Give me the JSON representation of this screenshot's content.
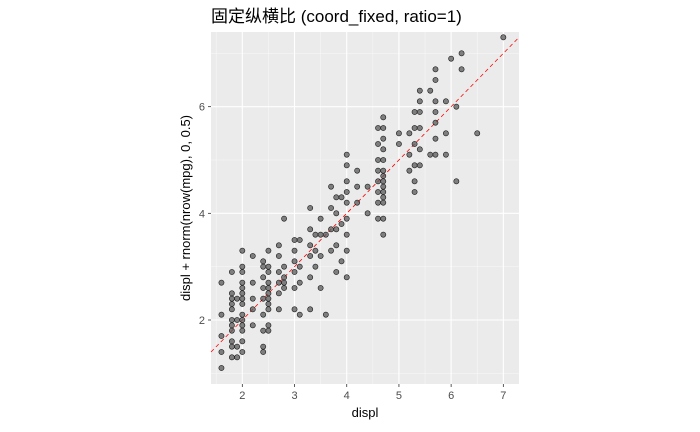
{
  "chart_data": {
    "type": "scatter",
    "title": "固定纵横比 (coord_fixed, ratio=1)",
    "xlabel": "displ",
    "ylabel": "displ + rnorm(nrow(mpg), 0, 0.5)",
    "xlim": [
      1.4,
      7.3
    ],
    "ylim": [
      0.8,
      7.4
    ],
    "xticks": [
      2,
      3,
      4,
      5,
      6,
      7
    ],
    "yticks": [
      2,
      4,
      6
    ],
    "grid": true,
    "panel_background": "#ebebeb",
    "point_color": "#595959",
    "reference_line": {
      "slope": 1,
      "intercept": 0,
      "style": "dashed",
      "color": "#ff0000"
    },
    "points": [
      [
        1.6,
        1.1
      ],
      [
        1.6,
        1.4
      ],
      [
        1.6,
        1.7
      ],
      [
        1.6,
        2.1
      ],
      [
        1.6,
        2.7
      ],
      [
        1.8,
        1.3
      ],
      [
        1.8,
        1.5
      ],
      [
        1.8,
        1.6
      ],
      [
        1.8,
        1.8
      ],
      [
        1.8,
        1.9
      ],
      [
        1.8,
        2.0
      ],
      [
        1.8,
        2.2
      ],
      [
        1.8,
        2.3
      ],
      [
        1.8,
        2.4
      ],
      [
        1.8,
        2.5
      ],
      [
        1.8,
        2.9
      ],
      [
        1.9,
        1.3
      ],
      [
        1.9,
        1.5
      ],
      [
        1.9,
        2.0
      ],
      [
        1.9,
        2.4
      ],
      [
        2.0,
        1.4
      ],
      [
        2.0,
        1.6
      ],
      [
        2.0,
        1.8
      ],
      [
        2.0,
        1.9
      ],
      [
        2.0,
        2.0
      ],
      [
        2.0,
        2.1
      ],
      [
        2.0,
        2.3
      ],
      [
        2.0,
        2.4
      ],
      [
        2.0,
        2.5
      ],
      [
        2.0,
        2.6
      ],
      [
        2.0,
        2.7
      ],
      [
        2.0,
        2.9
      ],
      [
        2.0,
        3.0
      ],
      [
        2.0,
        3.3
      ],
      [
        2.2,
        1.9
      ],
      [
        2.2,
        2.2
      ],
      [
        2.2,
        2.4
      ],
      [
        2.2,
        2.7
      ],
      [
        2.2,
        3.2
      ],
      [
        2.4,
        1.4
      ],
      [
        2.4,
        1.5
      ],
      [
        2.4,
        1.8
      ],
      [
        2.4,
        2.1
      ],
      [
        2.4,
        2.4
      ],
      [
        2.4,
        2.6
      ],
      [
        2.4,
        2.8
      ],
      [
        2.4,
        3.0
      ],
      [
        2.4,
        3.1
      ],
      [
        2.5,
        1.8
      ],
      [
        2.5,
        1.9
      ],
      [
        2.5,
        2.2
      ],
      [
        2.5,
        2.3
      ],
      [
        2.5,
        2.4
      ],
      [
        2.5,
        2.5
      ],
      [
        2.5,
        2.6
      ],
      [
        2.5,
        2.7
      ],
      [
        2.5,
        2.9
      ],
      [
        2.5,
        3.0
      ],
      [
        2.5,
        3.3
      ],
      [
        2.7,
        2.2
      ],
      [
        2.7,
        2.5
      ],
      [
        2.7,
        2.7
      ],
      [
        2.7,
        2.9
      ],
      [
        2.7,
        3.2
      ],
      [
        2.7,
        3.4
      ],
      [
        2.8,
        2.6
      ],
      [
        2.8,
        2.7
      ],
      [
        2.8,
        2.8
      ],
      [
        2.8,
        3.0
      ],
      [
        2.8,
        3.9
      ],
      [
        3.0,
        2.2
      ],
      [
        3.0,
        2.6
      ],
      [
        3.0,
        2.9
      ],
      [
        3.0,
        3.1
      ],
      [
        3.0,
        3.3
      ],
      [
        3.0,
        3.5
      ],
      [
        3.1,
        2.1
      ],
      [
        3.1,
        2.7
      ],
      [
        3.1,
        3.0
      ],
      [
        3.1,
        3.5
      ],
      [
        3.3,
        2.2
      ],
      [
        3.3,
        2.8
      ],
      [
        3.3,
        3.2
      ],
      [
        3.3,
        3.4
      ],
      [
        3.3,
        3.7
      ],
      [
        3.3,
        4.1
      ],
      [
        3.4,
        3.0
      ],
      [
        3.4,
        3.3
      ],
      [
        3.4,
        3.6
      ],
      [
        3.5,
        2.6
      ],
      [
        3.5,
        3.2
      ],
      [
        3.5,
        3.6
      ],
      [
        3.5,
        3.9
      ],
      [
        3.6,
        2.1
      ],
      [
        3.6,
        3.6
      ],
      [
        3.7,
        3.3
      ],
      [
        3.7,
        3.7
      ],
      [
        3.7,
        4.1
      ],
      [
        3.7,
        4.5
      ],
      [
        3.8,
        2.9
      ],
      [
        3.8,
        3.4
      ],
      [
        3.8,
        3.7
      ],
      [
        3.8,
        4.0
      ],
      [
        3.8,
        4.3
      ],
      [
        3.9,
        3.1
      ],
      [
        3.9,
        3.8
      ],
      [
        3.9,
        4.3
      ],
      [
        4.0,
        2.8
      ],
      [
        4.0,
        3.3
      ],
      [
        4.0,
        3.6
      ],
      [
        4.0,
        3.9
      ],
      [
        4.0,
        4.2
      ],
      [
        4.0,
        4.4
      ],
      [
        4.0,
        4.6
      ],
      [
        4.0,
        4.9
      ],
      [
        4.0,
        5.1
      ],
      [
        4.2,
        4.2
      ],
      [
        4.2,
        4.5
      ],
      [
        4.2,
        4.8
      ],
      [
        4.4,
        4.0
      ],
      [
        4.4,
        4.5
      ],
      [
        4.6,
        3.9
      ],
      [
        4.6,
        4.2
      ],
      [
        4.6,
        4.4
      ],
      [
        4.6,
        4.6
      ],
      [
        4.6,
        4.8
      ],
      [
        4.6,
        5.0
      ],
      [
        4.6,
        5.3
      ],
      [
        4.6,
        5.6
      ],
      [
        4.7,
        3.6
      ],
      [
        4.7,
        3.9
      ],
      [
        4.7,
        4.2
      ],
      [
        4.7,
        4.3
      ],
      [
        4.7,
        4.4
      ],
      [
        4.7,
        4.5
      ],
      [
        4.7,
        4.6
      ],
      [
        4.7,
        4.7
      ],
      [
        4.7,
        4.8
      ],
      [
        4.7,
        5.0
      ],
      [
        4.7,
        5.2
      ],
      [
        4.7,
        5.4
      ],
      [
        4.7,
        5.6
      ],
      [
        4.7,
        5.8
      ],
      [
        5.0,
        5.3
      ],
      [
        5.0,
        5.5
      ],
      [
        5.2,
        4.8
      ],
      [
        5.2,
        5.1
      ],
      [
        5.2,
        5.5
      ],
      [
        5.3,
        4.4
      ],
      [
        5.3,
        4.6
      ],
      [
        5.3,
        4.9
      ],
      [
        5.3,
        5.3
      ],
      [
        5.3,
        5.6
      ],
      [
        5.3,
        5.9
      ],
      [
        5.4,
        4.9
      ],
      [
        5.4,
        5.2
      ],
      [
        5.4,
        5.6
      ],
      [
        5.4,
        5.9
      ],
      [
        5.4,
        6.1
      ],
      [
        5.4,
        6.3
      ],
      [
        5.6,
        5.1
      ],
      [
        5.6,
        6.3
      ],
      [
        5.7,
        5.1
      ],
      [
        5.7,
        5.4
      ],
      [
        5.7,
        5.7
      ],
      [
        5.7,
        5.9
      ],
      [
        5.7,
        6.1
      ],
      [
        5.7,
        6.5
      ],
      [
        5.7,
        6.7
      ],
      [
        5.9,
        5.1
      ],
      [
        5.9,
        5.5
      ],
      [
        5.9,
        6.1
      ],
      [
        6.0,
        6.9
      ],
      [
        6.1,
        4.6
      ],
      [
        6.1,
        6.0
      ],
      [
        6.2,
        6.7
      ],
      [
        6.2,
        7.0
      ],
      [
        6.5,
        5.5
      ],
      [
        7.0,
        7.3
      ]
    ]
  }
}
